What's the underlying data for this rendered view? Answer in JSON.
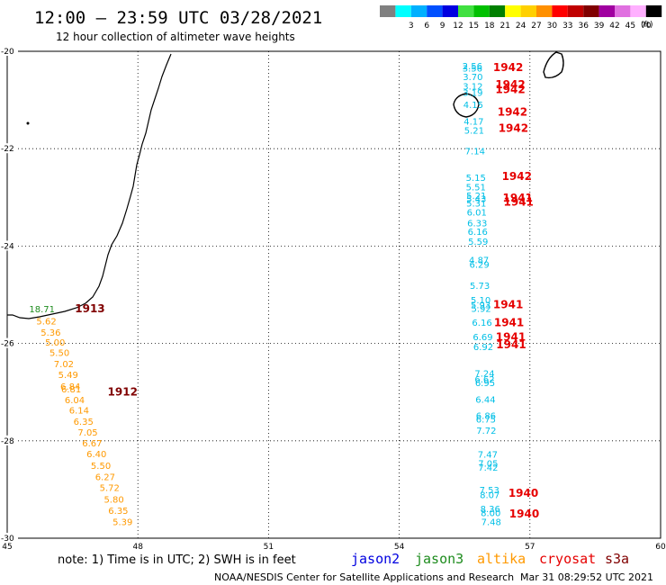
{
  "title": "12:00 — 23:59 UTC 03/28/2021",
  "subtitle": "12 hour collection of altimeter wave heights",
  "legend": {
    "unit": "(ft)",
    "bins": [
      {
        "label": "",
        "color": "#808080"
      },
      {
        "label": "3",
        "color": "#00ffff"
      },
      {
        "label": "6",
        "color": "#00b0ff"
      },
      {
        "label": "9",
        "color": "#0050ff"
      },
      {
        "label": "12",
        "color": "#0000e0"
      },
      {
        "label": "15",
        "color": "#40e040"
      },
      {
        "label": "18",
        "color": "#00c000"
      },
      {
        "label": "21",
        "color": "#008000"
      },
      {
        "label": "24",
        "color": "#ffff00"
      },
      {
        "label": "27",
        "color": "#ffd000"
      },
      {
        "label": "30",
        "color": "#ff9000"
      },
      {
        "label": "33",
        "color": "#ff0000"
      },
      {
        "label": "36",
        "color": "#c00000"
      },
      {
        "label": "39",
        "color": "#800000"
      },
      {
        "label": "42",
        "color": "#a000a0"
      },
      {
        "label": "45",
        "color": "#e070e0"
      },
      {
        "label": "70",
        "color": "#ffb0ff"
      },
      {
        "label": "",
        "color": "#000000"
      }
    ]
  },
  "map": {
    "lon_range": [
      45,
      60
    ],
    "lat_range": [
      -30,
      -20
    ],
    "lon_ticks": [
      "45",
      "48",
      "51",
      "54",
      "57",
      "60"
    ],
    "lat_ticks": [
      "-20",
      "-22",
      "-24",
      "-26",
      "-28",
      "-30"
    ],
    "grid": "dotted"
  },
  "chart_data": {
    "type": "scatter",
    "title": "12:00 — 23:59 UTC 03/28/2021",
    "subtitle": "12 hour collection of altimeter wave heights",
    "xlim": [
      45,
      60
    ],
    "ylim": [
      -30,
      -20
    ],
    "unit": "ft",
    "series": [
      {
        "name": "jason2",
        "color": "#00bfe6",
        "points": [
          {
            "lon": 55.68,
            "lat": -20.3,
            "value": "2.56"
          },
          {
            "lon": 55.68,
            "lat": -20.34,
            "value": "3.56"
          },
          {
            "lon": 55.69,
            "lat": -20.52,
            "value": "3.70"
          },
          {
            "lon": 55.69,
            "lat": -20.71,
            "value": "3.12"
          },
          {
            "lon": 55.69,
            "lat": -20.84,
            "value": "3.19"
          },
          {
            "lon": 55.7,
            "lat": -21.09,
            "value": "4.15"
          },
          {
            "lon": 55.71,
            "lat": -21.43,
            "value": "4.17"
          },
          {
            "lon": 55.72,
            "lat": -21.62,
            "value": "5.21"
          },
          {
            "lon": 55.74,
            "lat": -22.04,
            "value": "7.14"
          },
          {
            "lon": 55.76,
            "lat": -22.59,
            "value": "5.15"
          },
          {
            "lon": 55.76,
            "lat": -22.78,
            "value": "5.51"
          },
          {
            "lon": 55.77,
            "lat": -22.96,
            "value": "5.21"
          },
          {
            "lon": 55.77,
            "lat": -23.02,
            "value": "5.43"
          },
          {
            "lon": 55.77,
            "lat": -23.11,
            "value": "5.31"
          },
          {
            "lon": 55.78,
            "lat": -23.3,
            "value": "6.01"
          },
          {
            "lon": 55.79,
            "lat": -23.52,
            "value": "6.33"
          },
          {
            "lon": 55.8,
            "lat": -23.7,
            "value": "6.16"
          },
          {
            "lon": 55.81,
            "lat": -23.9,
            "value": "5.59"
          },
          {
            "lon": 55.83,
            "lat": -24.28,
            "value": "4.87"
          },
          {
            "lon": 55.84,
            "lat": -24.37,
            "value": "6.29"
          },
          {
            "lon": 55.85,
            "lat": -24.81,
            "value": "5.73"
          },
          {
            "lon": 55.87,
            "lat": -25.1,
            "value": "5.10"
          },
          {
            "lon": 55.87,
            "lat": -25.2,
            "value": "5.93"
          },
          {
            "lon": 55.88,
            "lat": -25.28,
            "value": "5.92"
          },
          {
            "lon": 55.9,
            "lat": -25.56,
            "value": "6.16"
          },
          {
            "lon": 55.92,
            "lat": -25.86,
            "value": "6.69"
          },
          {
            "lon": 55.93,
            "lat": -26.06,
            "value": "6.92"
          },
          {
            "lon": 55.96,
            "lat": -26.61,
            "value": "7.24"
          },
          {
            "lon": 55.96,
            "lat": -26.73,
            "value": "6.62"
          },
          {
            "lon": 55.97,
            "lat": -26.8,
            "value": "6.95"
          },
          {
            "lon": 55.98,
            "lat": -27.14,
            "value": "6.44"
          },
          {
            "lon": 55.99,
            "lat": -27.48,
            "value": "6.86"
          },
          {
            "lon": 55.99,
            "lat": -27.55,
            "value": "6.75"
          },
          {
            "lon": 56.0,
            "lat": -27.78,
            "value": "7.72"
          },
          {
            "lon": 56.03,
            "lat": -28.27,
            "value": "7.47"
          },
          {
            "lon": 56.04,
            "lat": -28.46,
            "value": "7.05"
          },
          {
            "lon": 56.04,
            "lat": -28.54,
            "value": "7.42"
          },
          {
            "lon": 56.07,
            "lat": -29.0,
            "value": "7.53"
          },
          {
            "lon": 56.08,
            "lat": -29.1,
            "value": "8.07"
          },
          {
            "lon": 56.09,
            "lat": -29.39,
            "value": "8.36"
          },
          {
            "lon": 56.1,
            "lat": -29.47,
            "value": "8.00"
          },
          {
            "lon": 56.11,
            "lat": -29.66,
            "value": "7.48"
          }
        ]
      },
      {
        "name": "jason3",
        "color": "#1e8c1e",
        "points": [
          {
            "lon": 45.8,
            "lat": -25.29,
            "value": "18.71"
          }
        ]
      },
      {
        "name": "cryosat",
        "color": "#e60000",
        "points": []
      },
      {
        "name": "altika",
        "color": "#ff9900",
        "points": [
          {
            "lon": 45.9,
            "lat": -25.54,
            "value": "5.62"
          },
          {
            "lon": 46.0,
            "lat": -25.77,
            "value": "5.36"
          },
          {
            "lon": 46.1,
            "lat": -25.97,
            "value": "5.00"
          },
          {
            "lon": 46.2,
            "lat": -26.18,
            "value": "5.50"
          },
          {
            "lon": 46.3,
            "lat": -26.41,
            "value": "7.02"
          },
          {
            "lon": 46.4,
            "lat": -26.64,
            "value": "5.49"
          },
          {
            "lon": 46.45,
            "lat": -26.88,
            "value": "6.84"
          },
          {
            "lon": 46.47,
            "lat": -26.93,
            "value": "6.81"
          },
          {
            "lon": 46.55,
            "lat": -27.15,
            "value": "6.04"
          },
          {
            "lon": 46.65,
            "lat": -27.37,
            "value": "6.14"
          },
          {
            "lon": 46.75,
            "lat": -27.6,
            "value": "6.35"
          },
          {
            "lon": 46.85,
            "lat": -27.82,
            "value": "7.05"
          },
          {
            "lon": 46.95,
            "lat": -28.04,
            "value": "6.67"
          },
          {
            "lon": 47.05,
            "lat": -28.26,
            "value": "6.40"
          },
          {
            "lon": 47.15,
            "lat": -28.5,
            "value": "5.50"
          },
          {
            "lon": 47.25,
            "lat": -28.73,
            "value": "6.27"
          },
          {
            "lon": 47.35,
            "lat": -28.96,
            "value": "5.72"
          },
          {
            "lon": 47.45,
            "lat": -29.2,
            "value": "5.80"
          },
          {
            "lon": 47.55,
            "lat": -29.43,
            "value": "6.35"
          },
          {
            "lon": 47.65,
            "lat": -29.66,
            "value": "5.39"
          }
        ]
      }
    ],
    "hour_labels": [
      {
        "lon": 46.9,
        "lat": -25.29,
        "label": "1913",
        "color": "#800000"
      },
      {
        "lon": 47.65,
        "lat": -27.0,
        "label": "1912",
        "color": "#800000"
      },
      {
        "lon": 56.5,
        "lat": -20.33,
        "label": "1942",
        "color": "#e60000"
      },
      {
        "lon": 56.55,
        "lat": -20.68,
        "label": "1942",
        "color": "#e60000"
      },
      {
        "lon": 56.55,
        "lat": -20.79,
        "label": "1942",
        "color": "#e60000"
      },
      {
        "lon": 56.6,
        "lat": -21.25,
        "label": "1942",
        "color": "#e60000"
      },
      {
        "lon": 56.62,
        "lat": -21.58,
        "label": "1942",
        "color": "#e60000"
      },
      {
        "lon": 56.7,
        "lat": -22.57,
        "label": "1942",
        "color": "#e60000"
      },
      {
        "lon": 56.72,
        "lat": -23.01,
        "label": "1941",
        "color": "#e60000"
      },
      {
        "lon": 56.74,
        "lat": -23.1,
        "label": "1941",
        "color": "#e60000"
      },
      {
        "lon": 56.5,
        "lat": -25.2,
        "label": "1941",
        "color": "#e60000"
      },
      {
        "lon": 56.52,
        "lat": -25.57,
        "label": "1941",
        "color": "#e60000"
      },
      {
        "lon": 56.56,
        "lat": -25.87,
        "label": "1941",
        "color": "#e60000"
      },
      {
        "lon": 56.57,
        "lat": -26.03,
        "label": "1941",
        "color": "#e60000"
      },
      {
        "lon": 56.85,
        "lat": -29.08,
        "label": "1940",
        "color": "#e60000"
      },
      {
        "lon": 56.87,
        "lat": -29.5,
        "label": "1940",
        "color": "#e60000"
      }
    ]
  },
  "footer": {
    "note": "note:  1) Time is in UTC;  2) SWH is in feet",
    "satellites": [
      {
        "name": "jason2",
        "color": "#0000e0"
      },
      {
        "name": "jason3",
        "color": "#1e8c1e"
      },
      {
        "name": "altika",
        "color": "#ff9900"
      },
      {
        "name": "cryosat",
        "color": "#e60000"
      },
      {
        "name": "s3a",
        "color": "#800000"
      }
    ],
    "credit": "NOAA/NESDIS Center for Satellite Applications and Research",
    "timestamp": "Mar 31 08:29:52 UTC 2021"
  }
}
